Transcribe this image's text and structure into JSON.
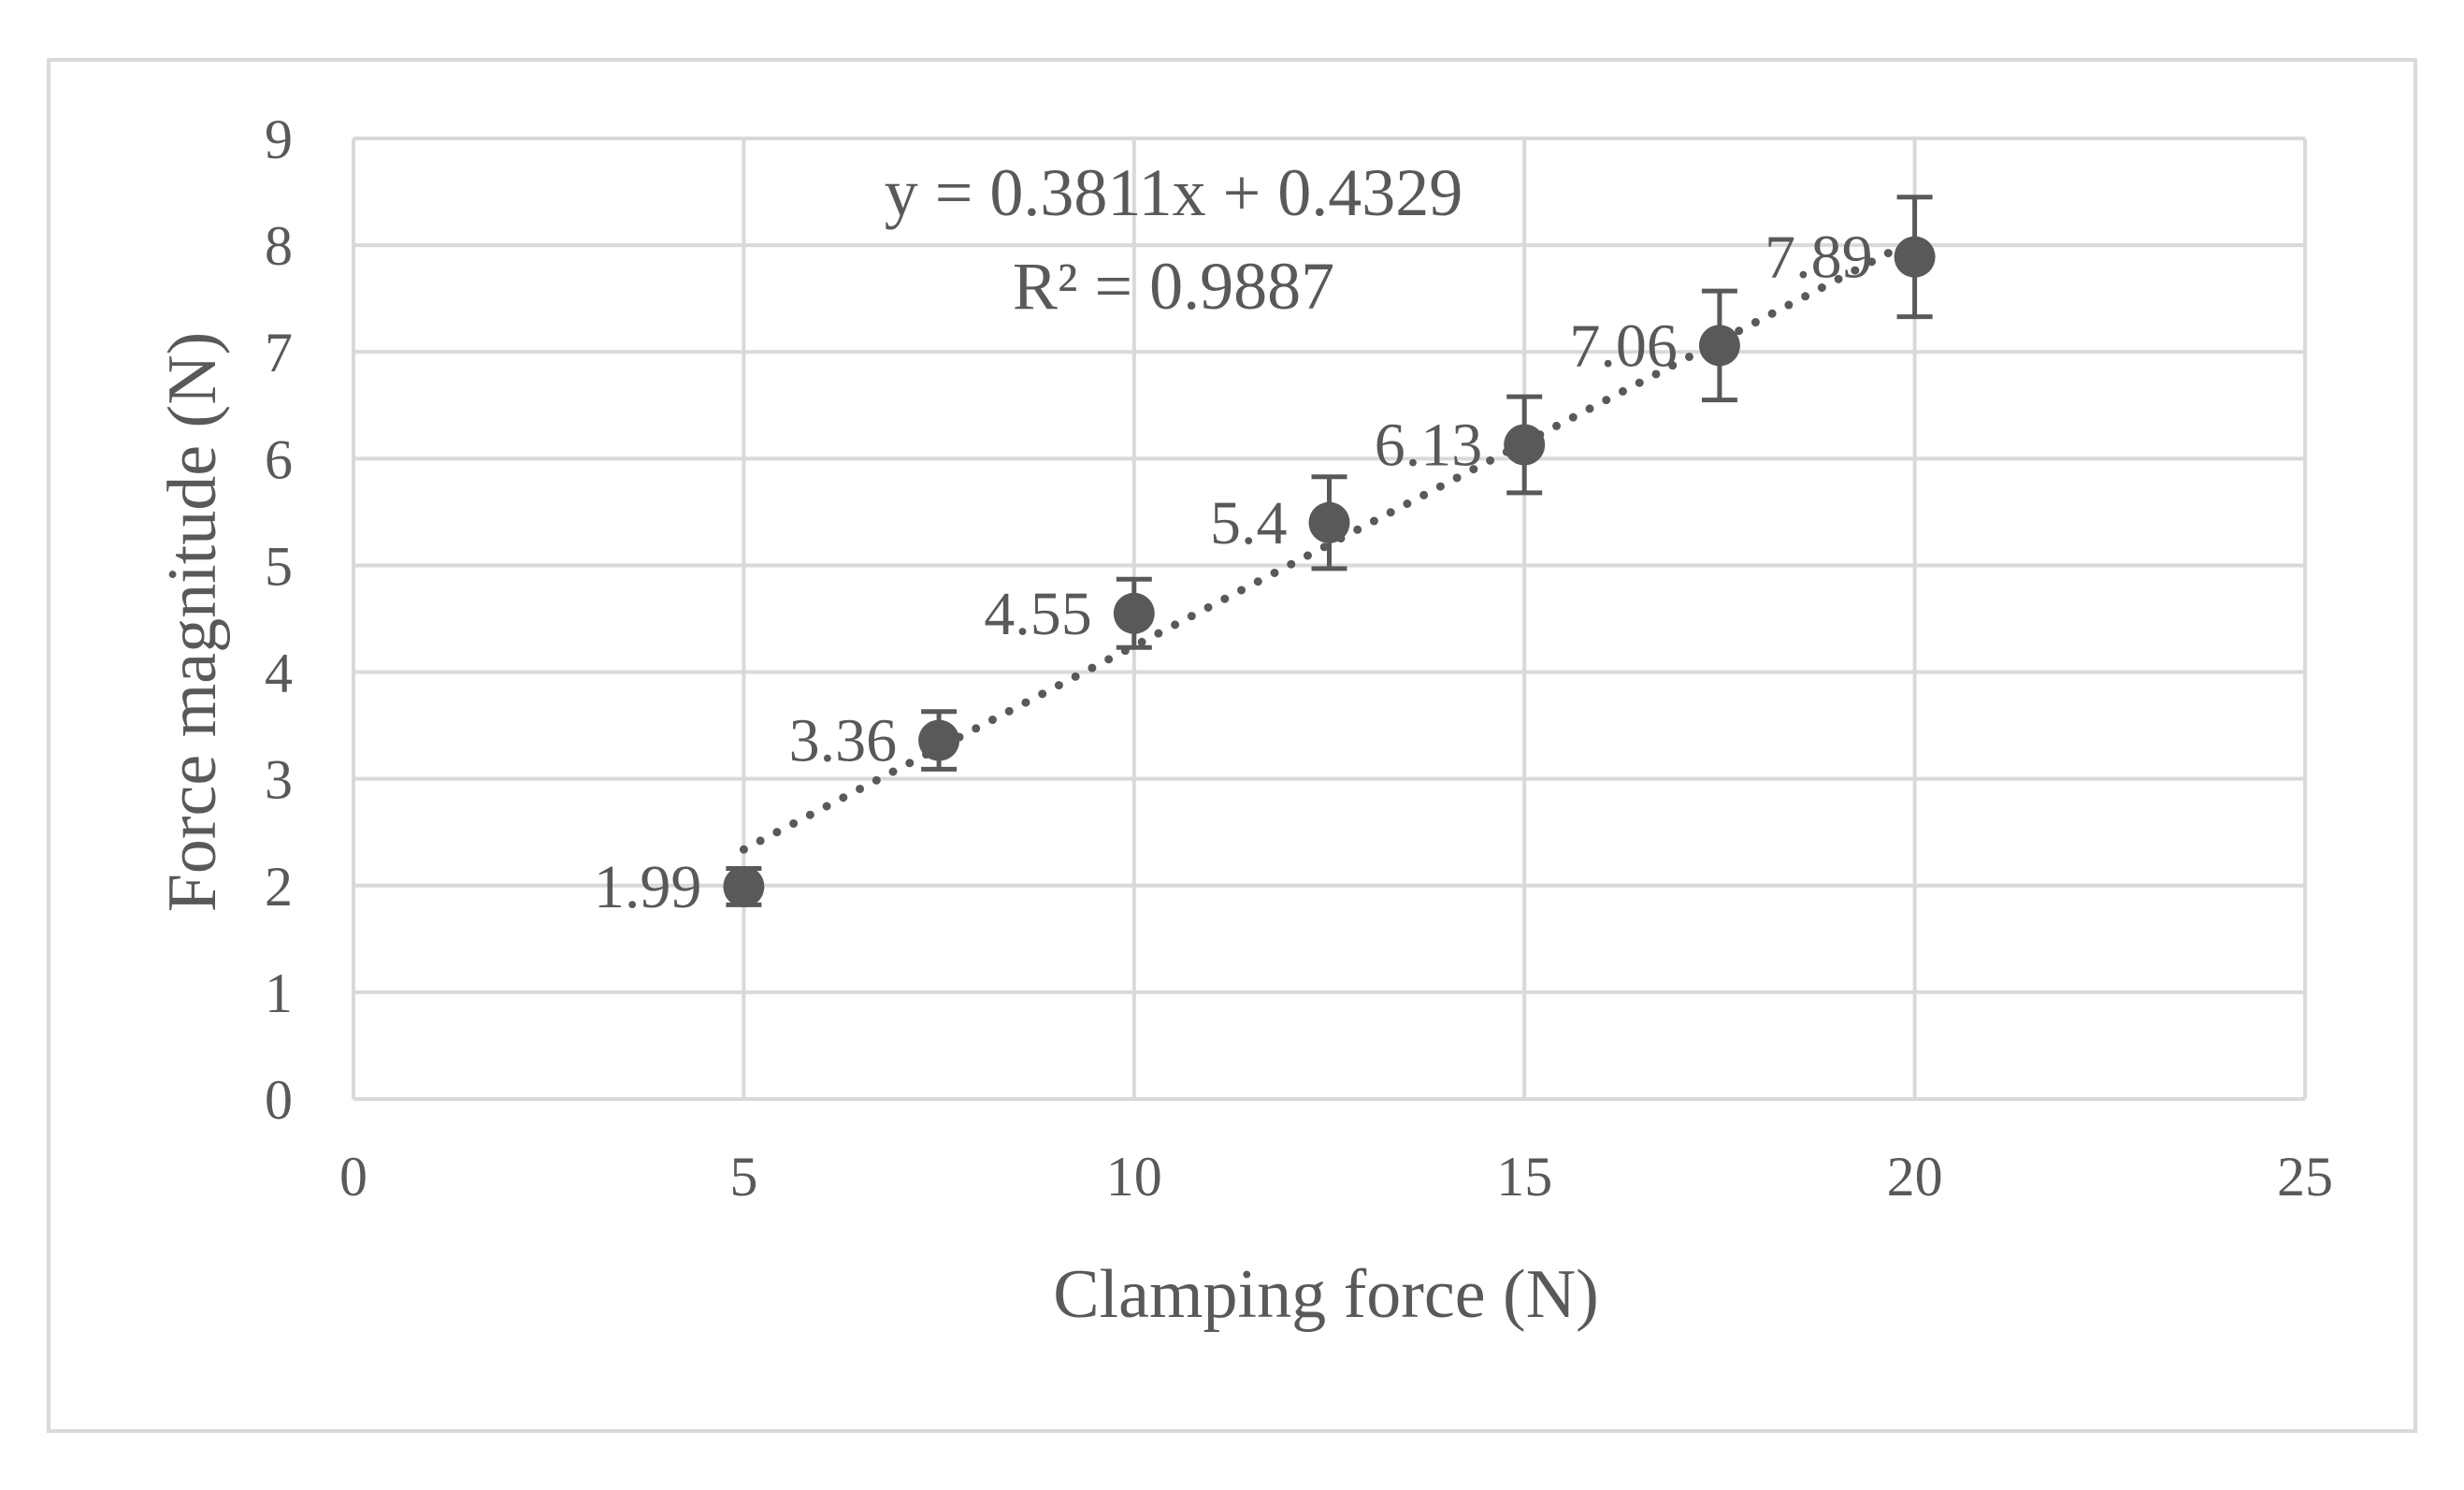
{
  "chart_data": {
    "type": "scatter",
    "title": "",
    "xlabel": "Clamping force (N)",
    "ylabel": "Force magnitude (N)",
    "xlim": [
      0,
      25
    ],
    "ylim": [
      0,
      9
    ],
    "x_ticks": [
      0,
      5,
      10,
      15,
      20,
      25
    ],
    "y_ticks": [
      0,
      1,
      2,
      3,
      4,
      5,
      6,
      7,
      8,
      9
    ],
    "grid": true,
    "legend": "none",
    "series": [
      {
        "x": [
          5,
          7.5,
          10,
          12.5,
          15,
          17.5,
          20
        ],
        "y": [
          1.99,
          3.36,
          4.55,
          5.4,
          6.13,
          7.06,
          7.89
        ],
        "error": [
          0.17,
          0.27,
          0.32,
          0.43,
          0.45,
          0.51,
          0.56
        ],
        "data_labels": [
          "1.99",
          "3.36",
          "4.55",
          "5.4",
          "6.13",
          "7.06",
          "7.89"
        ]
      }
    ],
    "trendline": {
      "type": "linear",
      "slope": 0.3811,
      "intercept": 0.4329,
      "x_range": [
        5,
        20
      ],
      "equation": "y = 0.3811x + 0.4329",
      "r_squared": "R² = 0.9887"
    },
    "colors": {
      "marker": "#595959",
      "grid": "#d9d9d9",
      "text": "#595959",
      "frame": "#d9d9d9"
    }
  }
}
